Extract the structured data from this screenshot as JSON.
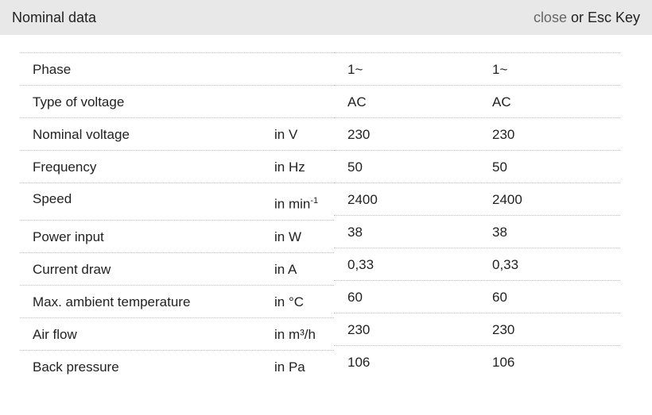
{
  "header": {
    "title": "Nominal data",
    "close_label": "close",
    "close_suffix": " or Esc Key"
  },
  "rows": [
    {
      "label": "Phase",
      "unit": "",
      "v1": "1~",
      "v2": "1~"
    },
    {
      "label": "Type of voltage",
      "unit": "",
      "v1": "AC",
      "v2": "AC"
    },
    {
      "label": "Nominal voltage",
      "unit": "in V",
      "v1": "230",
      "v2": "230"
    },
    {
      "label": "Frequency",
      "unit": "in Hz",
      "v1": "50",
      "v2": "50"
    },
    {
      "label": "Speed",
      "unit": "in min",
      "unit_sup": "-1",
      "v1": "2400",
      "v2": "2400"
    },
    {
      "label": "Power input",
      "unit": "in W",
      "v1": "38",
      "v2": "38"
    },
    {
      "label": "Current draw",
      "unit": "in A",
      "v1": "0,33",
      "v2": "0,33"
    },
    {
      "label": "Max. ambient temperature",
      "unit": "in °C",
      "v1": "60",
      "v2": "60"
    },
    {
      "label": "Air flow",
      "unit": "in m³/h",
      "v1": "230",
      "v2": "230"
    },
    {
      "label": "Back pressure",
      "unit": "in Pa",
      "v1": "106",
      "v2": "106"
    }
  ]
}
